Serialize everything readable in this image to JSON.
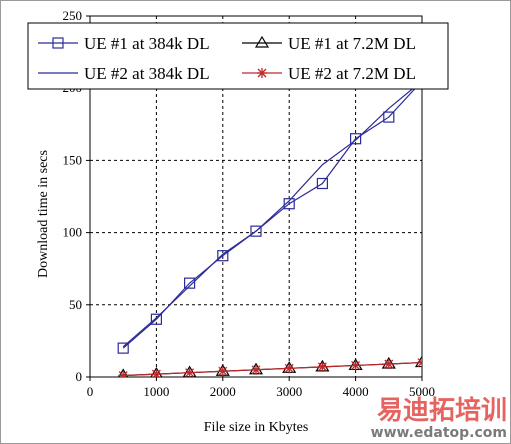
{
  "chart_data": {
    "type": "line",
    "xlabel": "File size in Kbytes",
    "ylabel": "Download time in secs",
    "xlim": [
      0,
      5000
    ],
    "ylim": [
      0,
      250
    ],
    "xticks": [
      0,
      1000,
      2000,
      3000,
      4000,
      5000
    ],
    "yticks": [
      0,
      50,
      100,
      150,
      200,
      250
    ],
    "grid": true,
    "legend_position": "top",
    "series": [
      {
        "name": "UE #1 at 384k DL",
        "color": "#2b2b9a",
        "marker": "square",
        "x": [
          500,
          1000,
          1500,
          2000,
          2500,
          3000,
          3500,
          4000,
          4500,
          5000
        ],
        "y": [
          20,
          40,
          65,
          84,
          101,
          120,
          134,
          165,
          180,
          205
        ]
      },
      {
        "name": "UE #2 at 384k DL",
        "color": "#2b2b9a",
        "marker": "none",
        "x": [
          500,
          1000,
          1500,
          2000,
          2500,
          3000,
          3500,
          4000,
          4500,
          5000
        ],
        "y": [
          21,
          41,
          63,
          85,
          101,
          122,
          147,
          164,
          186,
          205
        ]
      },
      {
        "name": "UE #1 at 7.2M DL",
        "color": "#000000",
        "marker": "triangle",
        "x": [
          500,
          1000,
          1500,
          2000,
          2500,
          3000,
          3500,
          4000,
          4500,
          5000
        ],
        "y": [
          1,
          2,
          3,
          4,
          5,
          6,
          7,
          8,
          9,
          10
        ]
      },
      {
        "name": "UE #2 at 7.2M DL",
        "color": "#c0282a",
        "marker": "asterisk",
        "x": [
          500,
          1000,
          1500,
          2000,
          2500,
          3000,
          3500,
          4000,
          4500,
          5000
        ],
        "y": [
          1,
          2,
          3,
          4,
          5,
          6,
          7,
          8,
          9,
          10
        ]
      }
    ]
  },
  "watermark": {
    "text_cn": "易迪拓培训",
    "url": "www.edatop.com"
  }
}
